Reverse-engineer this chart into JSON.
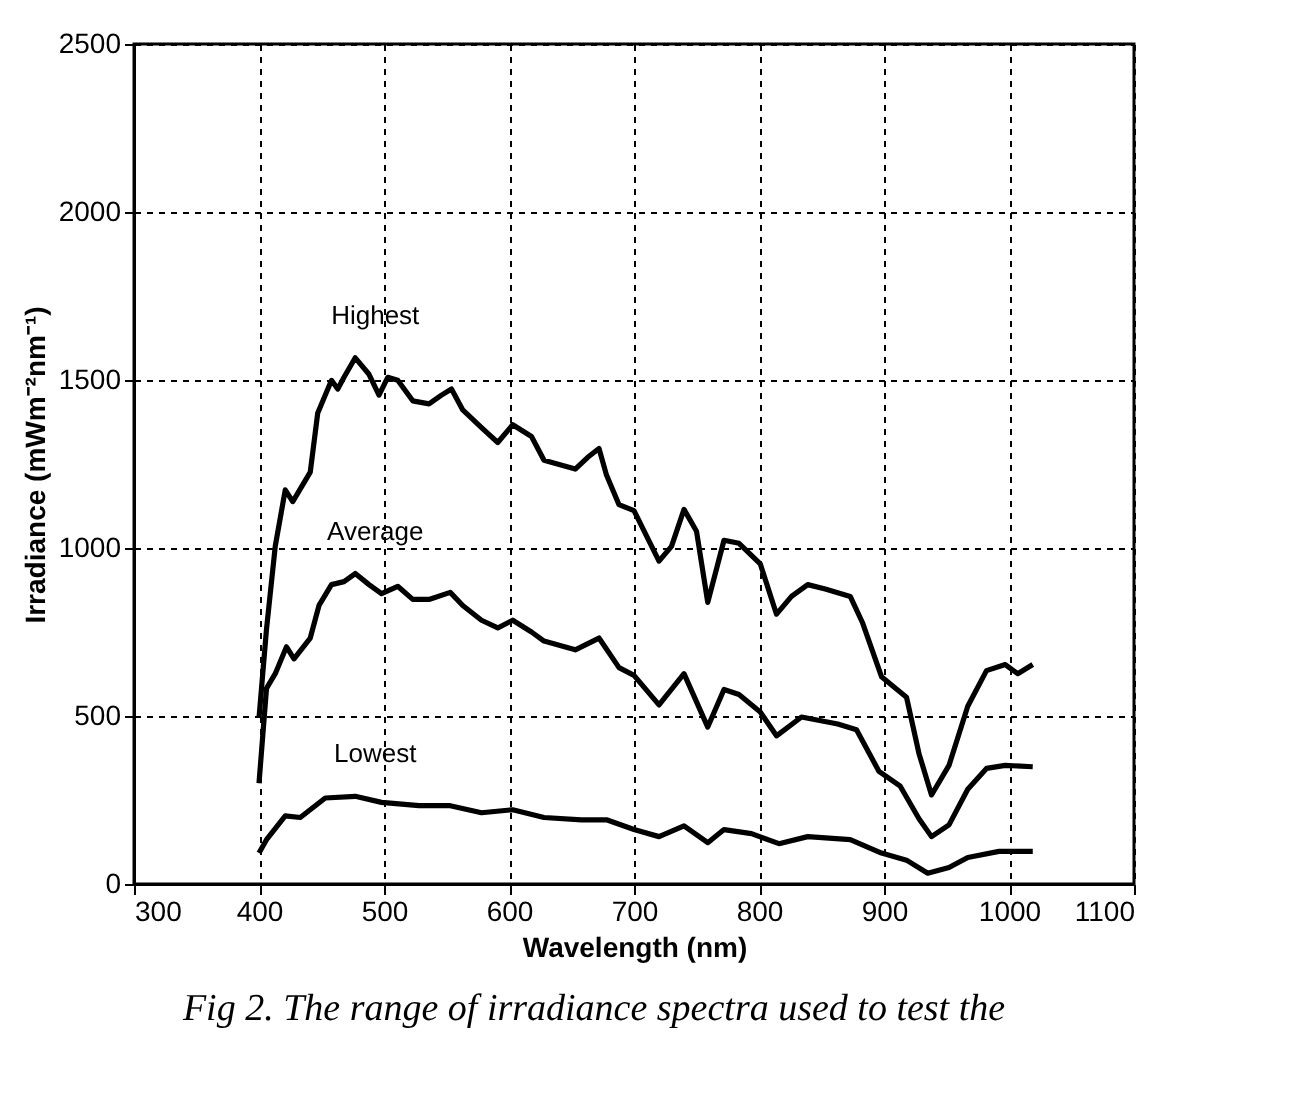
{
  "chart_data": {
    "type": "line",
    "xlabel": "Wavelength (nm)",
    "ylabel": "Irradiance (mWm⁻²nm⁻¹)",
    "xlim": [
      300,
      1100
    ],
    "xticks": [
      300,
      400,
      500,
      600,
      700,
      800,
      900,
      1000,
      1100
    ],
    "ylim": [
      0,
      2500
    ],
    "yticks": [
      0,
      500,
      1000,
      1500,
      2000,
      2500
    ],
    "grid": true,
    "marker": "none",
    "line_style": "solid",
    "series": [
      {
        "name": "Highest",
        "color": "#000000",
        "x": [
          400,
          406,
          413,
          421,
          427,
          441,
          447,
          458,
          463,
          468,
          477,
          488,
          496,
          503,
          511,
          523,
          536,
          546,
          554,
          563,
          578,
          591,
          603,
          618,
          628,
          653,
          663,
          672,
          678,
          688,
          700,
          720,
          730,
          740,
          750,
          759,
          772,
          784,
          801,
          814,
          826,
          839,
          853,
          873,
          883,
          898,
          918,
          928,
          938,
          952,
          967,
          982,
          997,
          1007,
          1019
        ],
        "values": [
          494,
          758,
          1005,
          1173,
          1138,
          1226,
          1402,
          1499,
          1473,
          1508,
          1566,
          1517,
          1455,
          1508,
          1499,
          1438,
          1429,
          1455,
          1473,
          1411,
          1358,
          1314,
          1367,
          1332,
          1261,
          1235,
          1270,
          1296,
          1217,
          1129,
          1111,
          961,
          1005,
          1115,
          1050,
          838,
          1023,
          1014,
          953,
          803,
          856,
          891,
          878,
          856,
          776,
          617,
          556,
          388,
          265,
          353,
          529,
          635,
          653,
          626,
          653
        ]
      },
      {
        "name": "Average",
        "color": "#000000",
        "x": [
          400,
          406,
          413,
          422,
          428,
          441,
          448,
          458,
          468,
          477,
          488,
          498,
          511,
          523,
          536,
          553,
          563,
          578,
          591,
          603,
          618,
          628,
          653,
          672,
          688,
          700,
          720,
          740,
          759,
          772,
          784,
          801,
          814,
          834,
          863,
          878,
          896,
          913,
          928,
          938,
          952,
          967,
          982,
          997,
          1019
        ],
        "values": [
          300,
          582,
          626,
          706,
          670,
          732,
          829,
          891,
          900,
          924,
          891,
          864,
          886,
          847,
          847,
          868,
          829,
          785,
          762,
          785,
          750,
          723,
          697,
          732,
          644,
          621,
          533,
          626,
          467,
          579,
          564,
          512,
          441,
          497,
          476,
          459,
          335,
          291,
          194,
          141,
          176,
          282,
          344,
          353,
          349
        ]
      },
      {
        "name": "Lowest",
        "color": "#000000",
        "x": [
          400,
          406,
          421,
          433,
          453,
          477,
          498,
          528,
          553,
          578,
          603,
          628,
          658,
          678,
          700,
          720,
          740,
          759,
          772,
          794,
          816,
          839,
          873,
          898,
          918,
          935,
          952,
          967,
          992,
          1019
        ],
        "values": [
          92,
          132,
          203,
          198,
          256,
          261,
          243,
          233,
          233,
          212,
          221,
          198,
          191,
          191,
          162,
          141,
          173,
          123,
          162,
          150,
          120,
          141,
          132,
          92,
          71,
          32,
          49,
          79,
          97,
          97
        ]
      }
    ],
    "annotations": [
      "Fig 2.  The range of irradiance spectra used to test the"
    ]
  }
}
